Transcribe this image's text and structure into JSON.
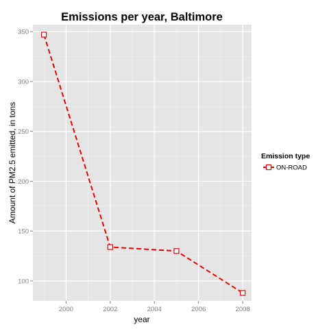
{
  "colors": {
    "panel_background": "#E5E5E5",
    "grid_major": "#FFFFFF",
    "grid_minor": "#F2F2F2",
    "series": "#E60000",
    "tick_text": "#7F7F7F",
    "text": "#000000",
    "marker_fill": "#FFFFFF"
  },
  "chart_data": {
    "type": "line",
    "title": "Emissions per year, Baltimore",
    "xlabel": "year",
    "ylabel": "Amount of PM2.5 emitted, in tons",
    "xlim": [
      1998.5,
      2008.4
    ],
    "ylim": [
      80,
      357
    ],
    "x_ticks": [
      2000,
      2002,
      2004,
      2006,
      2008
    ],
    "y_ticks": [
      100,
      150,
      200,
      250,
      300,
      350
    ],
    "grid": true,
    "legend": {
      "title": "Emission type",
      "position": "right",
      "entries": [
        "ON-ROAD"
      ]
    },
    "line_style": "dashed",
    "marker": "open-square",
    "series": [
      {
        "name": "ON-ROAD",
        "x": [
          1999,
          2002,
          2005,
          2008
        ],
        "y": [
          347,
          134,
          130,
          88
        ]
      }
    ]
  }
}
